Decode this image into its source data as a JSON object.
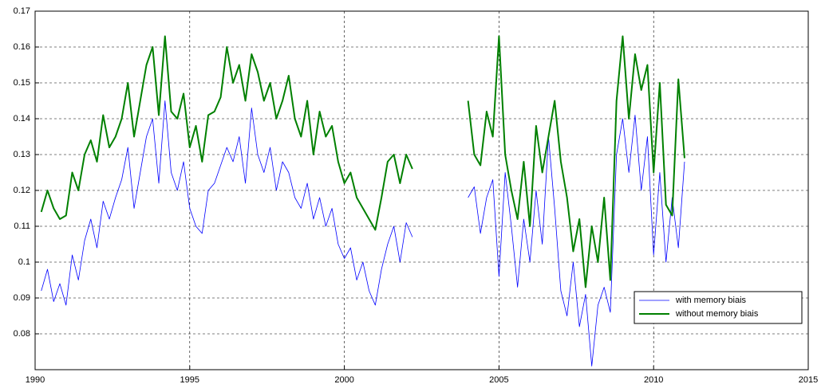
{
  "chart_data": {
    "type": "line",
    "x": [
      1990.2,
      1990.4,
      1990.6,
      1990.8,
      1991.0,
      1991.2,
      1991.4,
      1991.6,
      1991.8,
      1992.0,
      1992.2,
      1992.4,
      1992.6,
      1992.8,
      1993.0,
      1993.2,
      1993.4,
      1993.6,
      1993.8,
      1994.0,
      1994.2,
      1994.4,
      1994.6,
      1994.8,
      1995.0,
      1995.2,
      1995.4,
      1995.6,
      1995.8,
      1996.0,
      1996.2,
      1996.4,
      1996.6,
      1996.8,
      1997.0,
      1997.2,
      1997.4,
      1997.6,
      1997.8,
      1998.0,
      1998.2,
      1998.4,
      1998.6,
      1998.8,
      1999.0,
      1999.2,
      1999.4,
      1999.6,
      1999.8,
      2000.0,
      2000.2,
      2000.4,
      2000.6,
      2000.8,
      2001.0,
      2001.2,
      2001.4,
      2001.6,
      2001.8,
      2002.0,
      2002.2,
      2003.0,
      2004.0,
      2004.2,
      2004.4,
      2004.6,
      2004.8,
      2005.0,
      2005.2,
      2005.4,
      2005.6,
      2005.8,
      2006.0,
      2006.2,
      2006.4,
      2006.6,
      2006.8,
      2007.0,
      2007.2,
      2007.4,
      2007.6,
      2007.8,
      2008.0,
      2008.2,
      2008.4,
      2008.6,
      2008.8,
      2009.0,
      2009.2,
      2009.4,
      2009.6,
      2009.8,
      2010.0,
      2010.2,
      2010.4,
      2010.6,
      2010.8,
      2011.0
    ],
    "series": [
      {
        "name": "with memory biais",
        "color": "#0000ff",
        "width": 0.8,
        "values": [
          0.092,
          0.098,
          0.089,
          0.094,
          0.088,
          0.102,
          0.095,
          0.106,
          0.112,
          0.104,
          0.117,
          0.112,
          0.118,
          0.123,
          0.132,
          0.115,
          0.125,
          0.135,
          0.14,
          0.122,
          0.145,
          0.125,
          0.12,
          0.128,
          0.115,
          0.11,
          0.108,
          0.12,
          0.122,
          0.127,
          0.132,
          0.128,
          0.135,
          0.122,
          0.143,
          0.13,
          0.125,
          0.132,
          0.12,
          0.128,
          0.125,
          0.118,
          0.115,
          0.122,
          0.112,
          0.118,
          0.11,
          0.115,
          0.105,
          0.101,
          0.104,
          0.095,
          0.1,
          0.092,
          0.088,
          0.098,
          0.105,
          0.11,
          0.1,
          0.111,
          0.107,
          null,
          0.118,
          0.121,
          0.108,
          0.118,
          0.123,
          0.096,
          0.125,
          0.11,
          0.093,
          0.112,
          0.1,
          0.12,
          0.105,
          0.135,
          0.115,
          0.092,
          0.085,
          0.1,
          0.082,
          0.091,
          0.071,
          0.088,
          0.093,
          0.086,
          0.13,
          0.14,
          0.125,
          0.141,
          0.12,
          0.135,
          0.102,
          0.125,
          0.1,
          0.118,
          0.104,
          0.128
        ]
      },
      {
        "name": "without memory biais",
        "color": "#008000",
        "width": 2,
        "values": [
          0.114,
          0.12,
          0.115,
          0.112,
          0.113,
          0.125,
          0.12,
          0.13,
          0.134,
          0.128,
          0.141,
          0.132,
          0.135,
          0.14,
          0.15,
          0.135,
          0.145,
          0.155,
          0.16,
          0.141,
          0.163,
          0.142,
          0.14,
          0.147,
          0.132,
          0.138,
          0.128,
          0.141,
          0.142,
          0.146,
          0.16,
          0.15,
          0.155,
          0.145,
          0.158,
          0.153,
          0.145,
          0.15,
          0.14,
          0.145,
          0.152,
          0.14,
          0.135,
          0.145,
          0.13,
          0.142,
          0.135,
          0.138,
          0.128,
          0.122,
          0.125,
          0.118,
          0.115,
          0.112,
          0.109,
          0.118,
          0.128,
          0.13,
          0.122,
          0.13,
          0.126,
          null,
          0.145,
          0.13,
          0.127,
          0.142,
          0.135,
          0.163,
          0.13,
          0.12,
          0.112,
          0.128,
          0.11,
          0.138,
          0.125,
          0.135,
          0.145,
          0.128,
          0.118,
          0.103,
          0.112,
          0.093,
          0.11,
          0.1,
          0.118,
          0.095,
          0.145,
          0.163,
          0.14,
          0.158,
          0.148,
          0.155,
          0.125,
          0.15,
          0.116,
          0.113,
          0.151,
          0.129
        ]
      }
    ],
    "xlim": [
      1990,
      2015
    ],
    "xticks": [
      1990,
      1995,
      2000,
      2005,
      2010,
      2015
    ],
    "ylim": [
      0.07,
      0.17
    ],
    "yticks": [
      0.08,
      0.09,
      0.1,
      0.11,
      0.12,
      0.13,
      0.14,
      0.15,
      0.16,
      0.17
    ],
    "grid": true,
    "legend": "lower right"
  }
}
